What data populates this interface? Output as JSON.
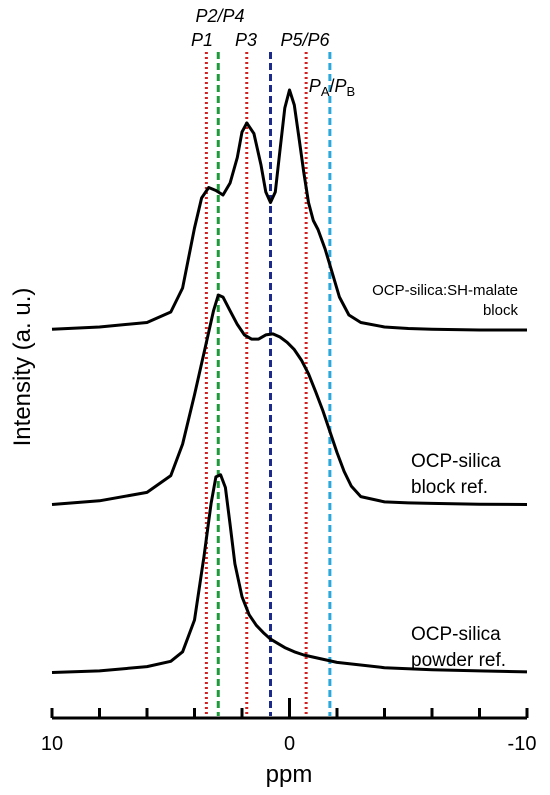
{
  "chart_data": {
    "type": "line",
    "xlabel": "ppm",
    "ylabel": "Intensity (a. u.)",
    "xlim": [
      10,
      -10
    ],
    "x_ticks": [
      "10",
      "0",
      "-10"
    ],
    "reference_lines": [
      {
        "ppm": 3.5,
        "color": "#d42020",
        "style": "dotted"
      },
      {
        "ppm": 3.0,
        "color": "#1f9a3a",
        "style": "dashed"
      },
      {
        "ppm": 1.8,
        "color": "#d42020",
        "style": "dotted"
      },
      {
        "ppm": 0.8,
        "color": "#1c2a8c",
        "style": "dashed"
      },
      {
        "ppm": -0.7,
        "color": "#d42020",
        "style": "dotted"
      },
      {
        "ppm": -1.7,
        "color": "#2aa8dc",
        "style": "dashed"
      }
    ],
    "peak_labels": [
      {
        "text": "P2/P4",
        "ppm": 3.0,
        "row": 1
      },
      {
        "text": "P1",
        "ppm": 3.8,
        "row": 2
      },
      {
        "text": "P3",
        "ppm": 1.9,
        "row": 2
      },
      {
        "text": "P5/P6",
        "ppm": -0.6,
        "row": 2
      },
      {
        "main1": "P",
        "sub1": "A",
        "sep": "/",
        "main2": "P",
        "sub2": "B",
        "ppm": -1.9,
        "row": 3
      }
    ],
    "series": [
      {
        "name": "OCP-silica:SH-malate block",
        "label_lines": [
          "OCP-silica:SH-malate",
          "block"
        ],
        "baseline": 0,
        "x": [
          10,
          8,
          6,
          5,
          4.5,
          4,
          3.7,
          3.4,
          3.1,
          2.8,
          2.5,
          2.2,
          2.0,
          1.8,
          1.5,
          1.2,
          1.0,
          0.8,
          0.6,
          0.4,
          0.2,
          0.0,
          -0.2,
          -0.4,
          -0.6,
          -0.8,
          -1.0,
          -1.2,
          -1.5,
          -1.8,
          -2.1,
          -2.5,
          -3,
          -4,
          -5,
          -6,
          -8,
          -10
        ],
        "y": [
          0.5,
          2,
          5,
          12,
          28,
          68,
          88,
          95,
          93,
          90,
          98,
          115,
          132,
          138,
          131,
          110,
          92,
          85,
          92,
          120,
          148,
          160,
          150,
          128,
          105,
          85,
          73,
          67,
          54,
          38,
          22,
          10,
          5,
          2,
          1,
          0.5,
          0,
          0
        ]
      },
      {
        "name": "OCP-silica block ref.",
        "label_lines": [
          "OCP-silica",
          "block ref."
        ],
        "baseline": 0,
        "x": [
          10,
          8,
          6,
          5,
          4.5,
          4,
          3.5,
          3.2,
          3.0,
          2.8,
          2.5,
          2.2,
          1.9,
          1.6,
          1.3,
          1.0,
          0.7,
          0.4,
          0.1,
          -0.2,
          -0.5,
          -0.8,
          -1.1,
          -1.4,
          -1.7,
          -2,
          -2.3,
          -2.6,
          -3,
          -4,
          -5,
          -6,
          -8,
          -10
        ],
        "y": [
          0.5,
          4,
          12,
          28,
          58,
          105,
          155,
          185,
          200,
          198,
          185,
          172,
          162,
          158,
          158,
          162,
          163,
          160,
          155,
          148,
          138,
          125,
          108,
          90,
          70,
          50,
          32,
          18,
          8,
          3,
          2,
          1.5,
          0.8,
          0.5
        ]
      },
      {
        "name": "OCP-silica powder ref.",
        "label_lines": [
          "OCP-silica",
          "powder ref."
        ],
        "baseline": 0,
        "x": [
          10,
          8,
          6,
          5,
          4.5,
          4.0,
          3.6,
          3.3,
          3.1,
          2.9,
          2.7,
          2.5,
          2.3,
          2.0,
          1.7,
          1.4,
          1.1,
          0.8,
          0.5,
          0.2,
          -0.2,
          -0.6,
          -1,
          -2,
          -4,
          -6,
          -8,
          -10
        ],
        "y": [
          0.5,
          2,
          6,
          11,
          20,
          50,
          110,
          160,
          185,
          187,
          175,
          140,
          103,
          72,
          55,
          45,
          38,
          32,
          28,
          24,
          20,
          17,
          15,
          10,
          5,
          3,
          2,
          1
        ]
      }
    ]
  }
}
